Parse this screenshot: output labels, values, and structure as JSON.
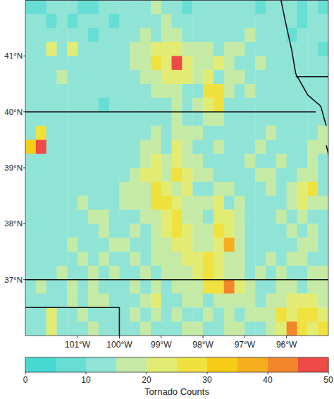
{
  "chart_data": {
    "type": "heatmap",
    "x": [
      -102.125,
      -101.875,
      -101.625,
      -101.375,
      -101.125,
      -100.875,
      -100.625,
      -100.375,
      -100.125,
      -99.875,
      -99.625,
      -99.375,
      -99.125,
      -98.875,
      -98.625,
      -98.375,
      -98.125,
      -97.875,
      -97.625,
      -97.375,
      -97.125,
      -96.875,
      -96.625,
      -96.375,
      -96.125,
      -95.875,
      -95.625,
      -95.375,
      -95.125
    ],
    "y": [
      41.875,
      41.625,
      41.375,
      41.125,
      40.875,
      40.625,
      40.375,
      40.125,
      39.875,
      39.625,
      39.375,
      39.125,
      38.875,
      38.625,
      38.375,
      38.125,
      37.875,
      37.625,
      37.375,
      37.125,
      36.875,
      36.625,
      36.375,
      36.125
    ],
    "xlim": [
      -102.25,
      -95.0
    ],
    "ylim": [
      36,
      42
    ],
    "xticks": [
      {
        "value": -101,
        "label": "101°W"
      },
      {
        "value": -100,
        "label": "100°W"
      },
      {
        "value": -99,
        "label": "99°W"
      },
      {
        "value": -98,
        "label": "98°W"
      },
      {
        "value": -97,
        "label": "97°W"
      },
      {
        "value": -96,
        "label": "96°W"
      }
    ],
    "yticks": [
      {
        "value": 37,
        "label": "37°N"
      },
      {
        "value": 38,
        "label": "38°N"
      },
      {
        "value": 39,
        "label": "39°N"
      },
      {
        "value": 40,
        "label": "40°N"
      },
      {
        "value": 41,
        "label": "41°N"
      }
    ],
    "cells": [
      [
        9,
        8,
        11,
        10,
        12,
        9,
        7,
        10,
        11,
        12,
        10,
        14,
        16,
        12,
        10,
        9,
        13,
        11,
        14,
        12,
        10,
        11,
        9,
        12,
        13,
        10,
        8,
        11,
        9
      ],
      [
        10,
        12,
        9,
        11,
        8,
        13,
        10,
        12,
        9,
        11,
        14,
        12,
        13,
        17,
        11,
        10,
        12,
        14,
        11,
        13,
        12,
        10,
        13,
        11,
        10,
        12,
        9,
        10,
        12
      ],
      [
        12,
        14,
        10,
        13,
        11,
        12,
        9,
        13,
        10,
        12,
        13,
        16,
        14,
        15,
        18,
        12,
        14,
        13,
        12,
        11,
        13,
        15,
        12,
        10,
        11,
        9,
        13,
        11,
        10
      ],
      [
        13,
        11,
        24,
        12,
        22,
        10,
        11,
        12,
        13,
        14,
        16,
        18,
        24,
        22,
        20,
        15,
        18,
        17,
        14,
        16,
        18,
        14,
        13,
        12,
        10,
        11,
        12,
        13,
        9
      ],
      [
        14,
        12,
        13,
        11,
        12,
        10,
        12,
        14,
        11,
        13,
        15,
        16,
        25,
        22,
        48,
        24,
        16,
        19,
        22,
        15,
        13,
        12,
        16,
        11,
        13,
        12,
        14,
        10,
        12
      ],
      [
        10,
        13,
        12,
        15,
        11,
        12,
        10,
        11,
        14,
        12,
        13,
        15,
        18,
        24,
        23,
        21,
        17,
        22,
        14,
        18,
        15,
        13,
        12,
        14,
        11,
        10,
        12,
        14,
        11
      ],
      [
        12,
        11,
        14,
        10,
        13,
        11,
        12,
        13,
        10,
        12,
        14,
        13,
        16,
        15,
        17,
        14,
        13,
        26,
        28,
        16,
        14,
        15,
        13,
        11,
        12,
        13,
        10,
        11,
        13
      ],
      [
        11,
        13,
        10,
        12,
        14,
        12,
        11,
        9,
        13,
        12,
        11,
        14,
        13,
        12,
        15,
        13,
        16,
        24,
        27,
        14,
        12,
        13,
        11,
        10,
        12,
        14,
        11,
        13,
        12
      ],
      [
        13,
        12,
        11,
        10,
        12,
        13,
        10,
        12,
        11,
        13,
        12,
        10,
        14,
        13,
        16,
        12,
        14,
        18,
        15,
        13,
        11,
        12,
        14,
        13,
        11,
        12,
        13,
        10,
        11
      ],
      [
        12,
        25,
        11,
        13,
        10,
        11,
        12,
        10,
        13,
        11,
        12,
        14,
        16,
        13,
        18,
        15,
        17,
        14,
        12,
        13,
        12,
        11,
        13,
        15,
        14,
        12,
        11,
        13,
        16
      ],
      [
        30,
        47,
        12,
        11,
        13,
        10,
        12,
        11,
        14,
        12,
        13,
        16,
        18,
        14,
        20,
        16,
        14,
        13,
        15,
        14,
        12,
        13,
        15,
        14,
        12,
        13,
        14,
        16,
        15
      ],
      [
        11,
        13,
        12,
        10,
        12,
        11,
        13,
        12,
        10,
        14,
        13,
        17,
        21,
        16,
        22,
        15,
        16,
        14,
        13,
        12,
        14,
        15,
        13,
        12,
        16,
        14,
        12,
        18,
        13
      ],
      [
        12,
        10,
        11,
        13,
        11,
        12,
        10,
        13,
        12,
        14,
        16,
        22,
        24,
        18,
        25,
        21,
        15,
        16,
        14,
        13,
        12,
        14,
        16,
        15,
        13,
        14,
        16,
        15,
        12
      ],
      [
        10,
        12,
        13,
        11,
        12,
        14,
        11,
        12,
        13,
        15,
        18,
        16,
        26,
        24,
        19,
        22,
        14,
        13,
        16,
        15,
        13,
        12,
        14,
        16,
        12,
        15,
        24,
        26,
        14
      ],
      [
        13,
        11,
        12,
        14,
        13,
        15,
        12,
        14,
        13,
        16,
        15,
        17,
        28,
        27,
        20,
        18,
        16,
        15,
        22,
        14,
        15,
        13,
        12,
        14,
        13,
        16,
        22,
        18,
        15
      ],
      [
        12,
        13,
        11,
        12,
        14,
        13,
        15,
        16,
        12,
        14,
        13,
        16,
        18,
        24,
        26,
        17,
        15,
        14,
        24,
        22,
        16,
        14,
        13,
        12,
        15,
        14,
        16,
        13,
        12
      ],
      [
        11,
        12,
        14,
        13,
        12,
        14,
        13,
        15,
        14,
        13,
        16,
        14,
        17,
        20,
        25,
        22,
        18,
        17,
        26,
        24,
        15,
        13,
        14,
        12,
        13,
        15,
        14,
        16,
        13
      ],
      [
        13,
        11,
        12,
        14,
        15,
        12,
        14,
        13,
        15,
        16,
        14,
        13,
        15,
        18,
        22,
        24,
        16,
        17,
        22,
        38,
        16,
        14,
        12,
        13,
        14,
        13,
        15,
        17,
        14
      ],
      [
        12,
        14,
        13,
        12,
        13,
        15,
        12,
        16,
        14,
        13,
        15,
        14,
        16,
        17,
        18,
        22,
        24,
        26,
        21,
        18,
        15,
        13,
        14,
        16,
        13,
        15,
        16,
        14,
        13
      ],
      [
        14,
        12,
        13,
        15,
        12,
        14,
        16,
        13,
        15,
        14,
        13,
        16,
        14,
        18,
        16,
        17,
        20,
        26,
        22,
        19,
        16,
        14,
        15,
        13,
        16,
        14,
        13,
        15,
        16
      ],
      [
        13,
        15,
        12,
        14,
        16,
        13,
        15,
        14,
        13,
        12,
        16,
        14,
        15,
        13,
        17,
        16,
        18,
        26,
        28,
        44,
        22,
        16,
        14,
        13,
        15,
        17,
        14,
        16,
        15
      ],
      [
        11,
        12,
        14,
        13,
        18,
        12,
        15,
        16,
        12,
        14,
        13,
        15,
        22,
        14,
        13,
        16,
        15,
        14,
        17,
        16,
        18,
        15,
        14,
        17,
        16,
        22,
        24,
        20,
        18
      ],
      [
        12,
        14,
        22,
        13,
        12,
        15,
        11,
        13,
        14,
        12,
        16,
        13,
        15,
        14,
        16,
        13,
        14,
        15,
        13,
        16,
        14,
        17,
        15,
        16,
        26,
        22,
        25,
        28,
        24
      ],
      [
        10,
        13,
        24,
        12,
        14,
        11,
        16,
        12,
        13,
        14,
        12,
        15,
        13,
        14,
        12,
        16,
        15,
        13,
        14,
        15,
        16,
        14,
        13,
        18,
        24,
        43,
        28,
        22,
        26
      ]
    ],
    "colorbar": {
      "range": [
        0,
        50
      ],
      "ticks": [
        0,
        10,
        20,
        30,
        40,
        50
      ],
      "label": "Tornado Counts",
      "colors": [
        "#45d9d1",
        "#66ded4",
        "#8fe4d6",
        "#c4eaa6",
        "#e3ec72",
        "#f0e13e",
        "#f6cd16",
        "#f6ad1e",
        "#f2862b",
        "#ee4a46"
      ]
    }
  }
}
